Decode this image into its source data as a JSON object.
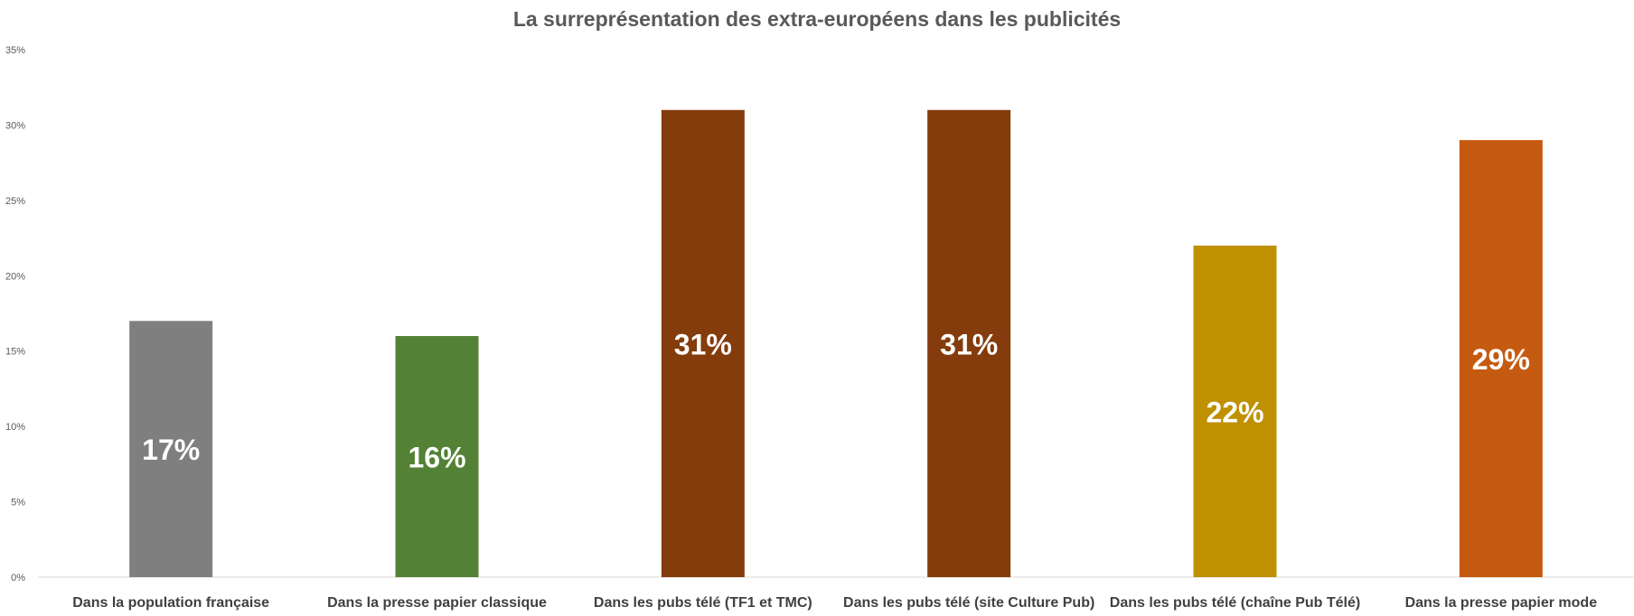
{
  "chart_data": {
    "type": "bar",
    "title": "La surreprésentation des extra-européens dans les publicités",
    "xlabel": "",
    "ylabel": "",
    "categories": [
      "Dans la population française",
      "Dans la presse papier classique",
      "Dans les pubs télé (TF1 et TMC)",
      "Dans les pubs télé (site Culture Pub)",
      "Dans les pubs télé (chaîne Pub Télé)",
      "Dans la presse papier mode"
    ],
    "values": [
      17,
      16,
      31,
      31,
      22,
      29
    ],
    "data_labels": [
      "17%",
      "16%",
      "31%",
      "31%",
      "22%",
      "29%"
    ],
    "colors": [
      "#7f7f7f",
      "#538135",
      "#843c0c",
      "#843c0c",
      "#bf9000",
      "#c55a11"
    ],
    "ylim": [
      0,
      35
    ],
    "yticks": [
      0,
      5,
      10,
      15,
      20,
      25,
      30,
      35
    ],
    "ytick_labels": [
      "0%",
      "5%",
      "10%",
      "15%",
      "20%",
      "25%",
      "30%",
      "35%"
    ],
    "grid": false,
    "legend": "none"
  }
}
